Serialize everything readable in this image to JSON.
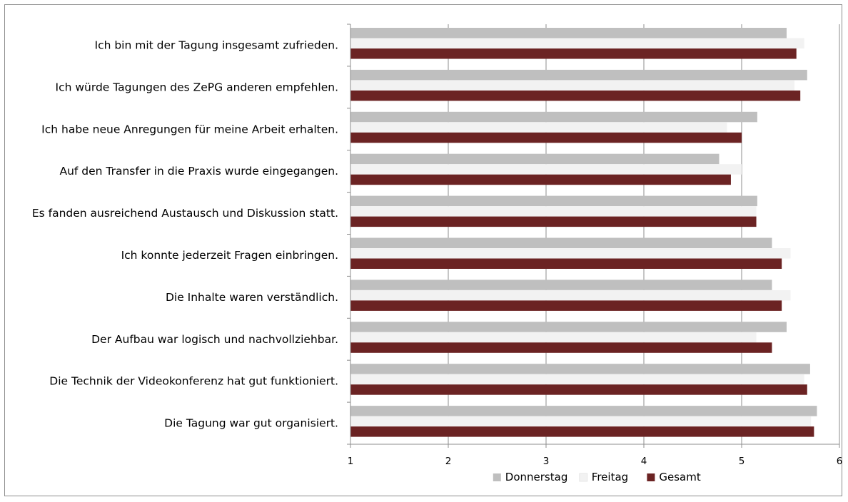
{
  "chart_data": {
    "type": "bar",
    "orientation": "horizontal",
    "categories": [
      "Ich bin mit der Tagung insgesamt zufrieden.",
      "Ich würde Tagungen des ZePG anderen empfehlen.",
      "Ich habe neue Anregungen für meine Arbeit erhalten.",
      "Auf den Transfer in die Praxis wurde eingegangen.",
      "Es fanden ausreichend Austausch und Diskussion statt.",
      "Ich konnte jederzeit Fragen einbringen.",
      "Die Inhalte waren verständlich.",
      "Der Aufbau war logisch und nachvollziehbar.",
      "Die Technik der Videokonferenz hat gut funktioniert.",
      "Die Tagung war gut organisiert."
    ],
    "series": [
      {
        "name": "Donnerstag",
        "color": "#bfbfbf",
        "values": [
          5.46,
          5.67,
          5.16,
          4.77,
          5.16,
          5.31,
          5.31,
          5.46,
          5.7,
          5.77
        ]
      },
      {
        "name": "Freitag",
        "color": "#f2f2f2",
        "values": [
          5.64,
          5.54,
          4.85,
          5.0,
          5.15,
          5.5,
          5.5,
          5.15,
          5.64,
          5.71
        ]
      },
      {
        "name": "Gesamt",
        "color": "#6b2323",
        "values": [
          5.56,
          5.6,
          5.0,
          4.89,
          5.15,
          5.41,
          5.41,
          5.31,
          5.67,
          5.74
        ]
      }
    ],
    "xlim": [
      1,
      6
    ],
    "x_ticks": [
      "1",
      "2",
      "3",
      "4",
      "5",
      "6"
    ],
    "grid": "vertical",
    "legend_position": "bottom",
    "title": "",
    "xlabel": "",
    "ylabel": ""
  }
}
